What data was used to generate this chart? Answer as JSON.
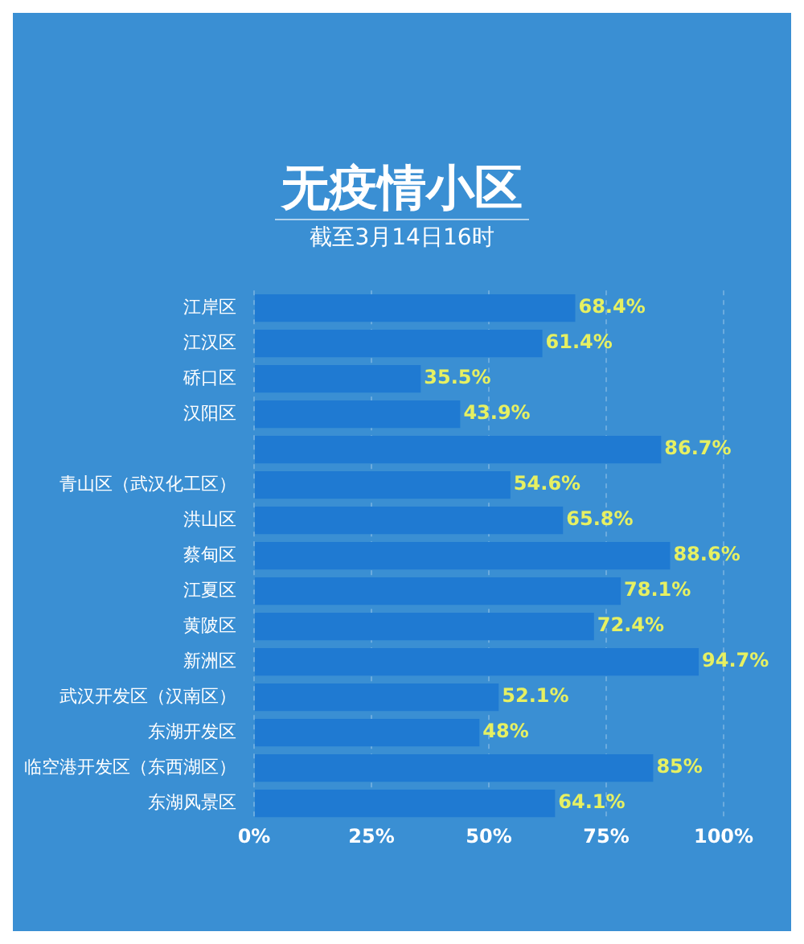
{
  "chart_data": {
    "type": "bar",
    "orientation": "horizontal",
    "title": "无疫情小区",
    "subtitle": "截至3月14日16时",
    "categories": [
      "江岸区",
      "江汉区",
      "硚口区",
      "汉阳区",
      null,
      "青山区（武汉化工区）",
      "洪山区",
      "蔡甸区",
      "江夏区",
      "黄陂区",
      "新洲区",
      "武汉开发区（汉南区）",
      "东湖开发区",
      "临空港开发区（东西湖区）",
      "东湖风景区"
    ],
    "values": [
      68.4,
      61.4,
      35.5,
      43.9,
      86.7,
      54.6,
      65.8,
      88.6,
      78.1,
      72.4,
      94.7,
      52.1,
      48,
      85,
      64.1
    ],
    "value_labels": [
      "68.4%",
      "61.4%",
      "35.5%",
      "43.9%",
      "86.7%",
      "54.6%",
      "65.8%",
      "88.6%",
      "78.1%",
      "72.4%",
      "94.7%",
      "52.1%",
      "48%",
      "85%",
      "64.1%"
    ],
    "color": "#1f7ad2",
    "xlim": [
      0,
      100
    ],
    "xticks": [
      {
        "value": 0,
        "label": "0%"
      },
      {
        "value": 25,
        "label": "25%"
      },
      {
        "value": 50,
        "label": "50%"
      },
      {
        "value": 75,
        "label": "75%"
      },
      {
        "value": 100,
        "label": "100%"
      }
    ],
    "grid": "x",
    "legend": false
  }
}
